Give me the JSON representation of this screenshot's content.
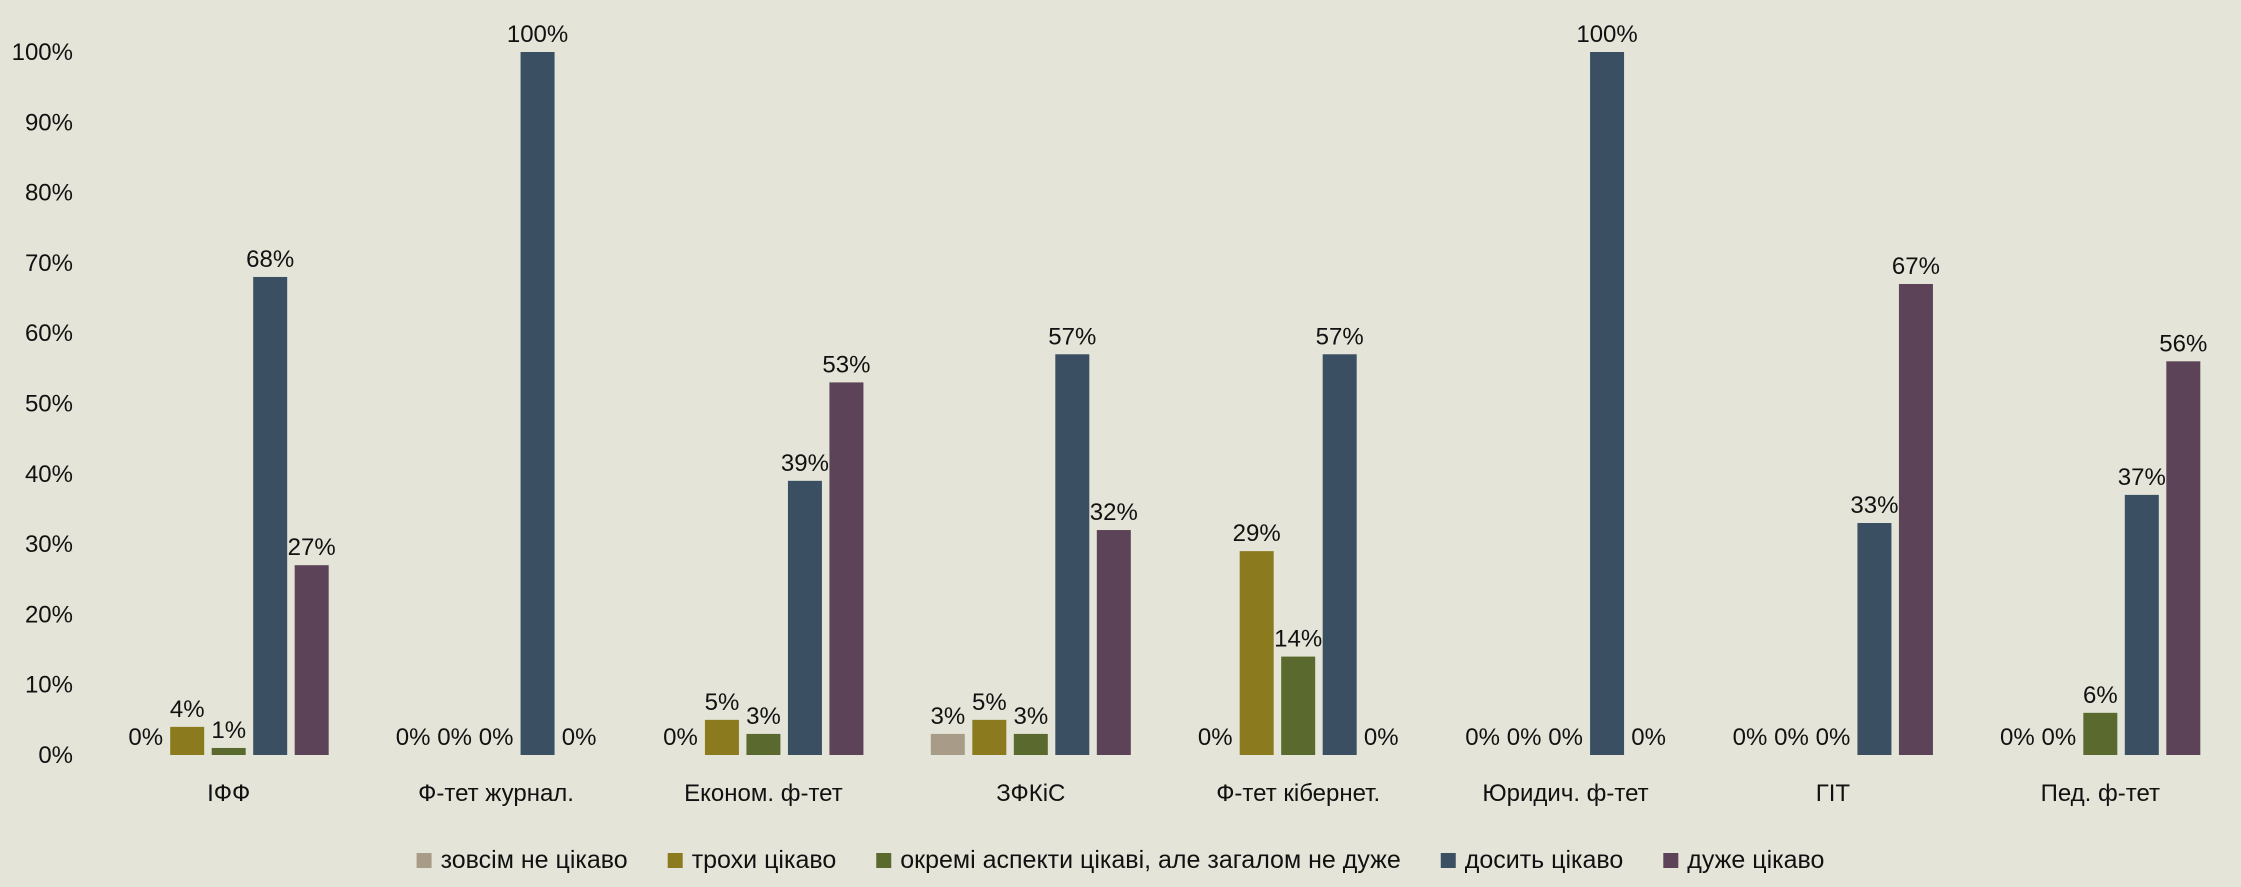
{
  "chart_data": {
    "type": "bar",
    "title": "",
    "xlabel": "",
    "ylabel": "",
    "ylim": [
      0,
      100
    ],
    "y_ticks": [
      "0%",
      "10%",
      "20%",
      "30%",
      "40%",
      "50%",
      "60%",
      "70%",
      "80%",
      "90%",
      "100%"
    ],
    "grid": false,
    "legend_position": "bottom",
    "categories": [
      "ІФФ",
      "Ф-тет журнал.",
      "Економ. ф-тет",
      "ЗФКіС",
      "Ф-тет кібернет.",
      "Юридич. ф-тет",
      "ГІТ",
      "Пед. ф-тет"
    ],
    "series": [
      {
        "name": "зовсім не цікаво",
        "color": "#a89c88",
        "values": [
          0,
          0,
          0,
          3,
          0,
          0,
          0,
          0
        ],
        "labels": [
          "0%",
          "0%",
          "0%",
          "3%",
          "0%",
          "0%",
          "0%",
          "0%"
        ]
      },
      {
        "name": "трохи цікаво",
        "color": "#8b7a1e",
        "values": [
          4,
          0,
          5,
          5,
          29,
          0,
          0,
          0
        ],
        "labels": [
          "4%",
          "0%",
          "5%",
          "5%",
          "29%",
          "0%",
          "0%",
          "0%"
        ]
      },
      {
        "name": "окремі аспекти цікаві, але загалом не дуже",
        "color": "#5a6a2e",
        "values": [
          1,
          0,
          3,
          3,
          14,
          0,
          0,
          6
        ],
        "labels": [
          "1%",
          "0%",
          "3%",
          "3%",
          "14%",
          "0%",
          "0%",
          "6%"
        ]
      },
      {
        "name": "досить цікаво",
        "color": "#3a5062",
        "values": [
          68,
          100,
          39,
          57,
          57,
          100,
          33,
          37
        ],
        "labels": [
          "68%",
          "100%",
          "39%",
          "57%",
          "57%",
          "100%",
          "33%",
          "37%"
        ]
      },
      {
        "name": "дуже цікаво",
        "color": "#5c4358",
        "values": [
          27,
          0,
          53,
          32,
          0,
          0,
          67,
          56
        ],
        "labels": [
          "27%",
          "0%",
          "53%",
          "32%",
          "0%",
          "0%",
          "67%",
          "56%"
        ]
      }
    ]
  }
}
